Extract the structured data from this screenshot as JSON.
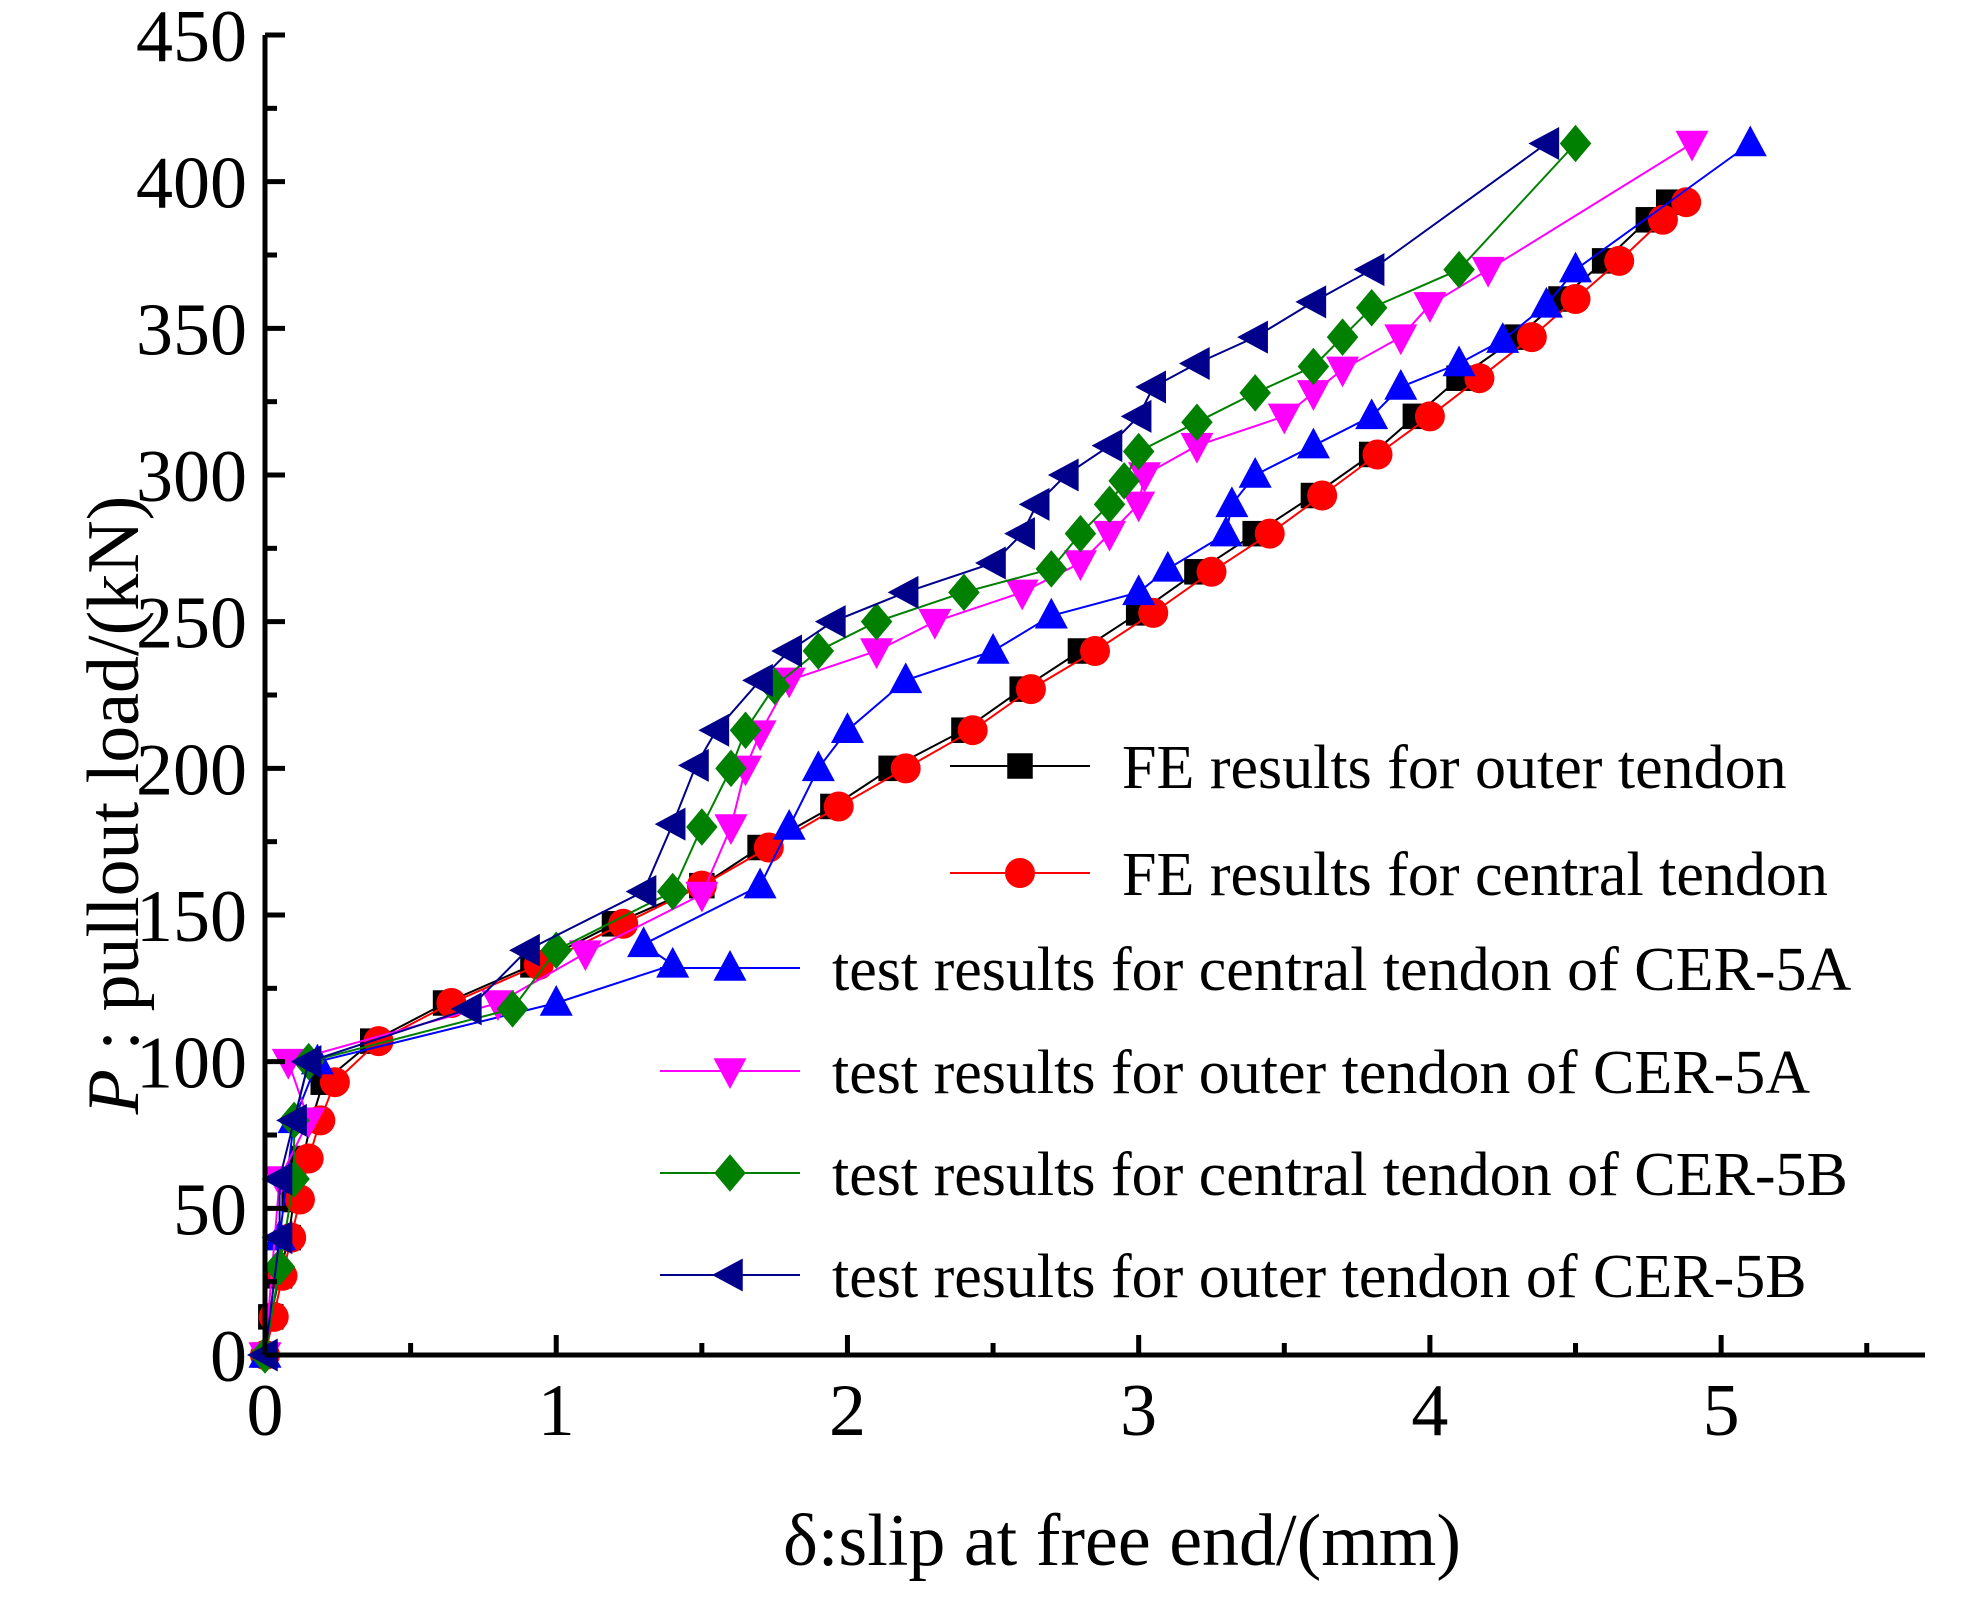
{
  "chart_data": {
    "type": "line",
    "xlabel": "δ:slip at free end/(mm)",
    "ylabel_italic": "P",
    "ylabel_rest": " : pullout load/(kN)",
    "xlim": [
      0,
      5.7
    ],
    "ylim": [
      0,
      450
    ],
    "x_ticks": [
      0,
      1,
      2,
      3,
      4,
      5
    ],
    "x_tick_labels": [
      "0",
      "1",
      "2",
      "3",
      "4",
      "5"
    ],
    "y_ticks": [
      0,
      50,
      100,
      150,
      200,
      250,
      300,
      350,
      400,
      450
    ],
    "y_tick_labels": [
      "0",
      "50",
      "100",
      "150",
      "200",
      "250",
      "300",
      "350",
      "400",
      "450"
    ],
    "grid": false,
    "legend_position": "bottom-right",
    "series": [
      {
        "name": "FE results for outer tendon",
        "color": "#000000",
        "marker": "square",
        "points": [
          [
            0,
            0
          ],
          [
            0.02,
            13
          ],
          [
            0.05,
            27
          ],
          [
            0.08,
            40
          ],
          [
            0.1,
            53
          ],
          [
            0.13,
            67
          ],
          [
            0.16,
            80
          ],
          [
            0.2,
            93
          ],
          [
            0.37,
            107
          ],
          [
            0.62,
            120
          ],
          [
            0.92,
            133
          ],
          [
            1.2,
            147
          ],
          [
            1.5,
            160
          ],
          [
            1.7,
            173
          ],
          [
            1.95,
            187
          ],
          [
            2.15,
            200
          ],
          [
            2.4,
            213
          ],
          [
            2.6,
            227
          ],
          [
            2.8,
            240
          ],
          [
            3.0,
            253
          ],
          [
            3.2,
            267
          ],
          [
            3.4,
            280
          ],
          [
            3.6,
            293
          ],
          [
            3.8,
            307
          ],
          [
            3.95,
            320
          ],
          [
            4.1,
            333
          ],
          [
            4.3,
            347
          ],
          [
            4.45,
            360
          ],
          [
            4.6,
            373
          ],
          [
            4.75,
            387
          ],
          [
            4.82,
            393
          ]
        ]
      },
      {
        "name": "FE results for central tendon",
        "color": "#ff0000",
        "marker": "circle",
        "points": [
          [
            0,
            0
          ],
          [
            0.03,
            13
          ],
          [
            0.06,
            27
          ],
          [
            0.09,
            40
          ],
          [
            0.12,
            53
          ],
          [
            0.15,
            67
          ],
          [
            0.19,
            80
          ],
          [
            0.24,
            93
          ],
          [
            0.39,
            107
          ],
          [
            0.64,
            120
          ],
          [
            0.94,
            133
          ],
          [
            1.23,
            147
          ],
          [
            1.5,
            160
          ],
          [
            1.73,
            173
          ],
          [
            1.97,
            187
          ],
          [
            2.2,
            200
          ],
          [
            2.43,
            213
          ],
          [
            2.63,
            227
          ],
          [
            2.85,
            240
          ],
          [
            3.05,
            253
          ],
          [
            3.25,
            267
          ],
          [
            3.45,
            280
          ],
          [
            3.63,
            293
          ],
          [
            3.82,
            307
          ],
          [
            4.0,
            320
          ],
          [
            4.17,
            333
          ],
          [
            4.35,
            347
          ],
          [
            4.5,
            360
          ],
          [
            4.65,
            373
          ],
          [
            4.8,
            387
          ],
          [
            4.88,
            393
          ]
        ]
      },
      {
        "name": "test results for central tendon of CER-5A",
        "color": "#0000ff",
        "marker": "triangle-up",
        "points": [
          [
            0,
            0
          ],
          [
            0.05,
            40
          ],
          [
            0.1,
            80
          ],
          [
            0.18,
            100
          ],
          [
            1.0,
            120
          ],
          [
            1.4,
            133
          ],
          [
            1.3,
            140
          ],
          [
            1.7,
            160
          ],
          [
            1.8,
            180
          ],
          [
            1.9,
            200
          ],
          [
            2.0,
            213
          ],
          [
            2.2,
            230
          ],
          [
            2.5,
            240
          ],
          [
            2.7,
            252
          ],
          [
            3.0,
            260
          ],
          [
            3.1,
            268
          ],
          [
            3.3,
            280
          ],
          [
            3.32,
            290
          ],
          [
            3.4,
            300
          ],
          [
            3.6,
            310
          ],
          [
            3.8,
            320
          ],
          [
            3.9,
            330
          ],
          [
            4.1,
            338
          ],
          [
            4.25,
            346
          ],
          [
            4.4,
            358
          ],
          [
            4.5,
            370
          ],
          [
            5.1,
            413
          ]
        ]
      },
      {
        "name": "test results for outer tendon of CER-5A",
        "color": "#ff00ff",
        "marker": "triangle-down",
        "points": [
          [
            0,
            0
          ],
          [
            0.05,
            60
          ],
          [
            0.15,
            80
          ],
          [
            0.08,
            100
          ],
          [
            0.8,
            120
          ],
          [
            1.1,
            137
          ],
          [
            1.5,
            157
          ],
          [
            1.6,
            180
          ],
          [
            1.65,
            200
          ],
          [
            1.7,
            212
          ],
          [
            1.8,
            230
          ],
          [
            2.1,
            240
          ],
          [
            2.3,
            250
          ],
          [
            2.6,
            260
          ],
          [
            2.8,
            270
          ],
          [
            2.9,
            280
          ],
          [
            3.0,
            290
          ],
          [
            3.02,
            300
          ],
          [
            3.2,
            310
          ],
          [
            3.5,
            320
          ],
          [
            3.6,
            328
          ],
          [
            3.7,
            336
          ],
          [
            3.9,
            347
          ],
          [
            4.0,
            358
          ],
          [
            4.2,
            370
          ],
          [
            4.9,
            413
          ]
        ]
      },
      {
        "name": "test results for central tendon of CER-5B",
        "color": "#008000",
        "marker": "diamond",
        "points": [
          [
            0,
            0
          ],
          [
            0.05,
            30
          ],
          [
            0.1,
            60
          ],
          [
            0.1,
            80
          ],
          [
            0.15,
            100
          ],
          [
            0.85,
            118
          ],
          [
            1.0,
            138
          ],
          [
            1.4,
            158
          ],
          [
            1.5,
            180
          ],
          [
            1.6,
            200
          ],
          [
            1.65,
            213
          ],
          [
            1.75,
            228
          ],
          [
            1.9,
            240
          ],
          [
            2.1,
            250
          ],
          [
            2.4,
            260
          ],
          [
            2.7,
            268
          ],
          [
            2.8,
            280
          ],
          [
            2.9,
            290
          ],
          [
            2.95,
            298
          ],
          [
            3.0,
            308
          ],
          [
            3.2,
            318
          ],
          [
            3.4,
            328
          ],
          [
            3.6,
            337
          ],
          [
            3.7,
            347
          ],
          [
            3.8,
            357
          ],
          [
            4.1,
            370
          ],
          [
            4.5,
            413
          ]
        ]
      },
      {
        "name": "test results for outer tendon of CER-5B",
        "color": "#00008b",
        "marker": "triangle-left",
        "points": [
          [
            0,
            0
          ],
          [
            0.05,
            40
          ],
          [
            0.05,
            60
          ],
          [
            0.1,
            80
          ],
          [
            0.15,
            100
          ],
          [
            0.7,
            118
          ],
          [
            0.9,
            138
          ],
          [
            1.3,
            158
          ],
          [
            1.4,
            181
          ],
          [
            1.48,
            201
          ],
          [
            1.55,
            213
          ],
          [
            1.7,
            230
          ],
          [
            1.8,
            240
          ],
          [
            1.95,
            250
          ],
          [
            2.2,
            260
          ],
          [
            2.5,
            270
          ],
          [
            2.6,
            280
          ],
          [
            2.65,
            290
          ],
          [
            2.75,
            300
          ],
          [
            2.9,
            310
          ],
          [
            3.0,
            320
          ],
          [
            3.05,
            330
          ],
          [
            3.2,
            338
          ],
          [
            3.4,
            347
          ],
          [
            3.6,
            359
          ],
          [
            3.8,
            370
          ],
          [
            4.4,
            413
          ]
        ]
      }
    ]
  }
}
